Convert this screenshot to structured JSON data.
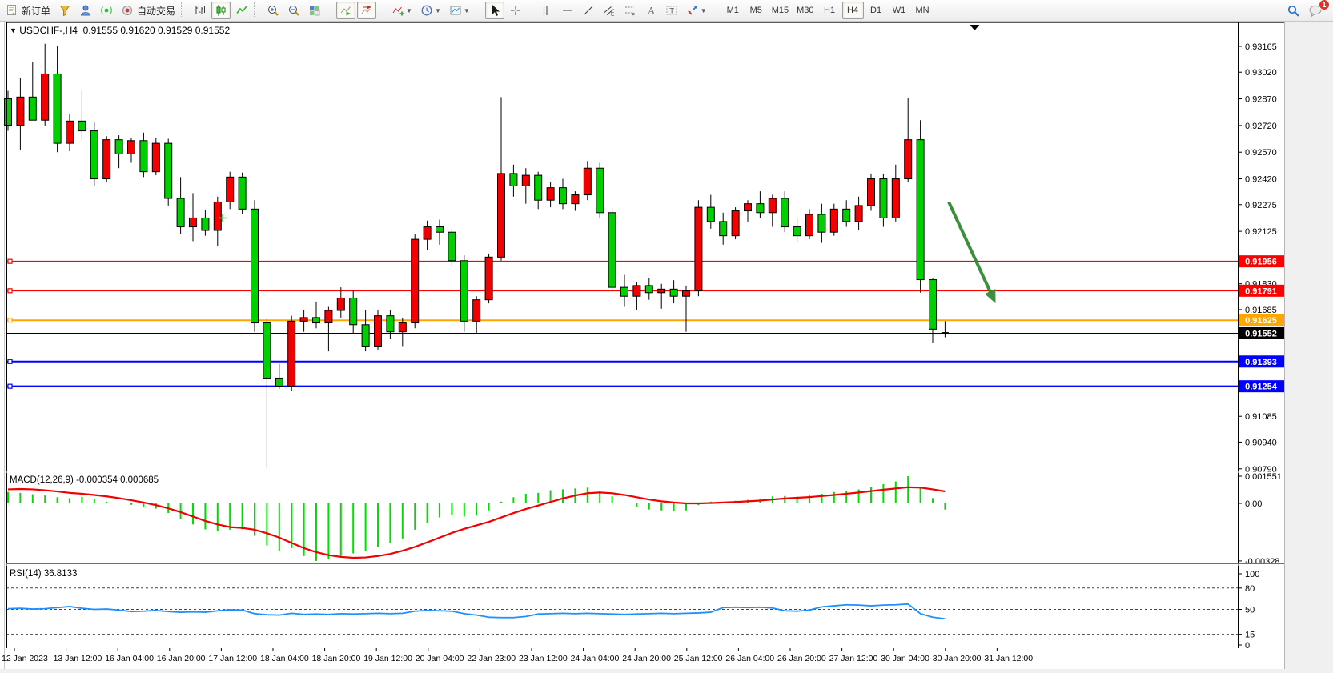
{
  "toolbar": {
    "items": [
      {
        "name": "new-order",
        "icon": "new-order-icon",
        "label": "新订单"
      },
      {
        "name": "metaquotes-funnel",
        "icon": "funnel-icon"
      },
      {
        "name": "community",
        "icon": "person-icon"
      },
      {
        "name": "signals",
        "icon": "signal-icon"
      },
      {
        "name": "auto-trading",
        "icon": "autotrade-icon",
        "label": "自动交易"
      },
      {
        "sep": true
      },
      {
        "name": "bar-chart-mode",
        "icon": "bar-chart-icon"
      },
      {
        "name": "candlestick-mode",
        "icon": "candlestick-icon",
        "active": true
      },
      {
        "name": "line-chart-mode",
        "icon": "line-chart-icon"
      },
      {
        "sep": true
      },
      {
        "name": "zoom-in",
        "icon": "zoom-in-icon"
      },
      {
        "name": "zoom-out",
        "icon": "zoom-out-icon"
      },
      {
        "name": "tile-windows",
        "icon": "tile-windows-icon"
      },
      {
        "sep": true
      },
      {
        "name": "auto-scroll",
        "icon": "auto-scroll-icon",
        "active": true
      },
      {
        "name": "chart-shift",
        "icon": "chart-shift-icon",
        "active": true
      },
      {
        "sep": true
      },
      {
        "name": "indicators",
        "icon": "indicators-icon",
        "caret": true
      },
      {
        "name": "periods",
        "icon": "clock-icon",
        "caret": true
      },
      {
        "name": "templates",
        "icon": "template-icon",
        "caret": true
      },
      {
        "sep": true
      },
      {
        "name": "cursor",
        "icon": "cursor-icon",
        "active": true
      },
      {
        "name": "crosshair",
        "icon": "crosshair-icon"
      },
      {
        "sep": true
      },
      {
        "name": "vertical-line",
        "icon": "vline-icon"
      },
      {
        "name": "horizontal-line",
        "icon": "hline-icon"
      },
      {
        "name": "trendline",
        "icon": "trendline-icon"
      },
      {
        "name": "equidistant-channel",
        "icon": "channel-icon"
      },
      {
        "name": "fibonacci",
        "icon": "fibonacci-icon"
      },
      {
        "name": "text",
        "icon": "text-icon"
      },
      {
        "name": "text-label",
        "icon": "label-icon"
      },
      {
        "name": "arrows",
        "icon": "shapes-icon",
        "caret": true
      },
      {
        "sep": true
      },
      {
        "name": "tf-m1",
        "label": "M1",
        "tf": true
      },
      {
        "name": "tf-m5",
        "label": "M5",
        "tf": true
      },
      {
        "name": "tf-m15",
        "label": "M15",
        "tf": true
      },
      {
        "name": "tf-m30",
        "label": "M30",
        "tf": true
      },
      {
        "name": "tf-h1",
        "label": "H1",
        "tf": true
      },
      {
        "name": "tf-h4",
        "label": "H4",
        "tf": true,
        "active": true
      },
      {
        "name": "tf-d1",
        "label": "D1",
        "tf": true
      },
      {
        "name": "tf-w1",
        "label": "W1",
        "tf": true
      },
      {
        "name": "tf-mn",
        "label": "MN",
        "tf": true
      }
    ],
    "right": [
      {
        "name": "search",
        "icon": "search-icon"
      },
      {
        "name": "notifications",
        "icon": "chat-icon",
        "badge": "1"
      }
    ]
  },
  "title": {
    "dropdown_glyph": "▼",
    "symbol_period": "USDCHF-,H4",
    "ohlc_text": "0.91555 0.91620 0.91529 0.91552"
  },
  "chart_data": {
    "type": "candlestick",
    "symbol": "USDCHF-",
    "timeframe": "H4",
    "current": {
      "open": "0.91555",
      "high": "0.91620",
      "low": "0.91529",
      "close": "0.91552"
    },
    "colors": {
      "bull_body": "#f40000",
      "bear_body": "#00cf00",
      "wick": "#000000",
      "resistance_line": "#ff0000",
      "pivot_line": "#ffa500",
      "support_line": "#0000ff",
      "current_price_line": "#000000",
      "macd_histogram": "#00dd00",
      "macd_signal": "#f00000",
      "rsi_line": "#1e90ff",
      "arrow": "#338a33",
      "plus_marker": "#32e632"
    },
    "y_axis": {
      "ticks": [
        "0.93165",
        "0.93020",
        "0.92870",
        "0.92720",
        "0.92570",
        "0.92420",
        "0.92275",
        "0.92125",
        "0.91830",
        "0.91685",
        "0.91085",
        "0.90940",
        "0.90790"
      ],
      "top_price": 0.93165,
      "bottom_price": 0.9079
    },
    "price_lines": [
      {
        "price": 0.91956,
        "label": "0.91956",
        "role": "resistance",
        "color": "#ff0000"
      },
      {
        "price": 0.91791,
        "label": "0.91791",
        "role": "resistance",
        "color": "#ff0000"
      },
      {
        "price": 0.91625,
        "label": "0.91625",
        "role": "pivot",
        "color": "#ffa500"
      },
      {
        "price": 0.91393,
        "label": "0.91393",
        "role": "support",
        "color": "#0000ff"
      },
      {
        "price": 0.91254,
        "label": "0.91254",
        "role": "support",
        "color": "#0000ff"
      }
    ],
    "current_price_tag": {
      "price": 0.91552,
      "label": "0.91552",
      "color": "#000000"
    },
    "x_labels": [
      "12 Jan 2023",
      "13 Jan 12:00",
      "16 Jan 04:00",
      "16 Jan 20:00",
      "17 Jan 12:00",
      "18 Jan 04:00",
      "18 Jan 20:00",
      "19 Jan 12:00",
      "20 Jan 04:00",
      "22 Jan 23:00",
      "23 Jan 12:00",
      "24 Jan 04:00",
      "24 Jan 20:00",
      "25 Jan 12:00",
      "26 Jan 04:00",
      "26 Jan 20:00",
      "27 Jan 12:00",
      "30 Jan 04:00",
      "30 Jan 20:00",
      "31 Jan 12:00"
    ],
    "candles": [
      [
        0.9287,
        0.92915,
        0.9269,
        0.92722
      ],
      [
        0.92722,
        0.92985,
        0.9258,
        0.9288
      ],
      [
        0.9288,
        0.93075,
        0.9276,
        0.9275
      ],
      [
        0.9275,
        0.9318,
        0.9272,
        0.9301
      ],
      [
        0.9301,
        0.93165,
        0.9257,
        0.9262
      ],
      [
        0.9262,
        0.92785,
        0.92575,
        0.92745
      ],
      [
        0.92745,
        0.9292,
        0.9264,
        0.9269
      ],
      [
        0.9269,
        0.9274,
        0.9238,
        0.9242
      ],
      [
        0.9242,
        0.9266,
        0.924,
        0.9264
      ],
      [
        0.9264,
        0.92665,
        0.9248,
        0.9256
      ],
      [
        0.9256,
        0.9265,
        0.9251,
        0.92635
      ],
      [
        0.92635,
        0.9268,
        0.9243,
        0.9246
      ],
      [
        0.9246,
        0.9265,
        0.9244,
        0.9262
      ],
      [
        0.9262,
        0.92645,
        0.9227,
        0.9231
      ],
      [
        0.9231,
        0.9243,
        0.9211,
        0.9215
      ],
      [
        0.9215,
        0.9234,
        0.9207,
        0.922
      ],
      [
        0.922,
        0.92245,
        0.921,
        0.9213
      ],
      [
        0.9213,
        0.9232,
        0.9204,
        0.9229
      ],
      [
        0.9229,
        0.9246,
        0.9225,
        0.9243
      ],
      [
        0.9243,
        0.92455,
        0.9222,
        0.9225
      ],
      [
        0.9225,
        0.923,
        0.9156,
        0.9161
      ],
      [
        0.9161,
        0.9164,
        0.90795,
        0.913
      ],
      [
        0.913,
        0.9138,
        0.9124,
        0.91255
      ],
      [
        0.91255,
        0.9165,
        0.9123,
        0.9162
      ],
      [
        0.9162,
        0.9168,
        0.9156,
        0.9164
      ],
      [
        0.9164,
        0.9173,
        0.9158,
        0.9161
      ],
      [
        0.9161,
        0.917,
        0.9145,
        0.9168
      ],
      [
        0.9168,
        0.9181,
        0.9164,
        0.9175
      ],
      [
        0.9175,
        0.91795,
        0.9155,
        0.916
      ],
      [
        0.916,
        0.9168,
        0.9145,
        0.9148
      ],
      [
        0.9148,
        0.9168,
        0.9146,
        0.9165
      ],
      [
        0.9165,
        0.9168,
        0.9152,
        0.9156
      ],
      [
        0.9156,
        0.9164,
        0.9148,
        0.9161
      ],
      [
        0.9161,
        0.9211,
        0.9158,
        0.9208
      ],
      [
        0.9208,
        0.92185,
        0.9202,
        0.9215
      ],
      [
        0.9215,
        0.9219,
        0.9205,
        0.9212
      ],
      [
        0.9212,
        0.9214,
        0.9193,
        0.9196
      ],
      [
        0.9196,
        0.9199,
        0.9156,
        0.9162
      ],
      [
        0.9162,
        0.9176,
        0.9155,
        0.9174
      ],
      [
        0.9174,
        0.92,
        0.9172,
        0.9198
      ],
      [
        0.9198,
        0.9288,
        0.9196,
        0.9245
      ],
      [
        0.9245,
        0.925,
        0.9232,
        0.9238
      ],
      [
        0.9238,
        0.9248,
        0.9228,
        0.9244
      ],
      [
        0.9244,
        0.9246,
        0.9225,
        0.923
      ],
      [
        0.923,
        0.924,
        0.9226,
        0.9237
      ],
      [
        0.9237,
        0.9242,
        0.9225,
        0.9228
      ],
      [
        0.9228,
        0.9235,
        0.9224,
        0.9233
      ],
      [
        0.9233,
        0.9252,
        0.923,
        0.9248
      ],
      [
        0.9248,
        0.9251,
        0.922,
        0.9223
      ],
      [
        0.9223,
        0.9225,
        0.9179,
        0.9181
      ],
      [
        0.9181,
        0.9188,
        0.917,
        0.9176
      ],
      [
        0.9176,
        0.9184,
        0.9168,
        0.9182
      ],
      [
        0.9182,
        0.9186,
        0.9174,
        0.9178
      ],
      [
        0.9178,
        0.9183,
        0.9169,
        0.918
      ],
      [
        0.918,
        0.9185,
        0.9172,
        0.9176
      ],
      [
        0.9176,
        0.9182,
        0.9156,
        0.9179
      ],
      [
        0.9179,
        0.923,
        0.9176,
        0.9226
      ],
      [
        0.9226,
        0.9233,
        0.9214,
        0.9218
      ],
      [
        0.9218,
        0.9223,
        0.9205,
        0.921
      ],
      [
        0.921,
        0.9226,
        0.9208,
        0.9224
      ],
      [
        0.9224,
        0.923,
        0.9218,
        0.9228
      ],
      [
        0.9228,
        0.9235,
        0.922,
        0.9223
      ],
      [
        0.9223,
        0.9233,
        0.9215,
        0.9231
      ],
      [
        0.9231,
        0.9235,
        0.9212,
        0.9215
      ],
      [
        0.9215,
        0.922,
        0.9206,
        0.921
      ],
      [
        0.921,
        0.9225,
        0.9208,
        0.9222
      ],
      [
        0.9222,
        0.9228,
        0.9206,
        0.9212
      ],
      [
        0.9212,
        0.9228,
        0.921,
        0.9225
      ],
      [
        0.9225,
        0.923,
        0.9215,
        0.9218
      ],
      [
        0.9218,
        0.9232,
        0.9213,
        0.9227
      ],
      [
        0.9227,
        0.9245,
        0.9224,
        0.9242
      ],
      [
        0.9242,
        0.9245,
        0.9215,
        0.922
      ],
      [
        0.922,
        0.925,
        0.9218,
        0.9242
      ],
      [
        0.9242,
        0.92876,
        0.924,
        0.9264
      ],
      [
        0.9264,
        0.9275,
        0.9178,
        0.91853
      ],
      [
        0.91853,
        0.9186,
        0.915,
        0.91575
      ],
      [
        0.91555,
        0.9162,
        0.91529,
        0.91552
      ]
    ],
    "macd": {
      "label_text": "MACD(12,26,9) -0.000354 0.000685",
      "value": -0.000354,
      "signal_value": 0.000685,
      "axis_values": [
        0.001551,
        0,
        -0.00328
      ],
      "axis_labels": [
        "0.001551",
        "0.00",
        "-0.00328"
      ],
      "histogram": [
        0.00065,
        0.0006,
        0.00052,
        0.00045,
        0.00035,
        0.0003,
        0.00038,
        0.00025,
        0.0001,
        2e-05,
        -8e-05,
        -0.0002,
        -0.0003,
        -0.00055,
        -0.0009,
        -0.0012,
        -0.00148,
        -0.0016,
        -0.0015,
        -0.00148,
        -0.00185,
        -0.0024,
        -0.0027,
        -0.00255,
        -0.003,
        -0.00328,
        -0.0032,
        -0.003,
        -0.00285,
        -0.0027,
        -0.0025,
        -0.00225,
        -0.002,
        -0.0015,
        -0.0011,
        -0.0008,
        -0.00065,
        -0.00075,
        -0.0007,
        -0.0004,
        0.0001,
        0.00035,
        0.00055,
        0.0006,
        0.00075,
        0.0008,
        0.00085,
        0.0009,
        0.0007,
        0.0004,
        5e-05,
        -0.0002,
        -0.00035,
        -0.0004,
        -0.00042,
        -0.0004,
        -0.0001,
        0.0001,
        8e-05,
        0.00015,
        0.0002,
        0.00028,
        0.0004,
        0.00042,
        0.00038,
        0.00045,
        0.00055,
        0.00065,
        0.0007,
        0.0008,
        0.00095,
        0.0011,
        0.00125,
        0.00155,
        0.0009,
        0.0003,
        -0.000354
      ],
      "signal": [
        0.0008,
        0.00082,
        0.0008,
        0.00075,
        0.00068,
        0.0006,
        0.00055,
        0.00048,
        0.0004,
        0.0003,
        0.00018,
        5e-05,
        -0.0001,
        -0.00028,
        -0.0005,
        -0.00075,
        -0.001,
        -0.0012,
        -0.00135,
        -0.0014,
        -0.0015,
        -0.0017,
        -0.00195,
        -0.00225,
        -0.00255,
        -0.00278,
        -0.00295,
        -0.00305,
        -0.0031,
        -0.00308,
        -0.003,
        -0.00288,
        -0.0027,
        -0.00248,
        -0.00222,
        -0.00195,
        -0.00168,
        -0.00145,
        -0.00125,
        -0.00105,
        -0.0008,
        -0.00055,
        -0.00032,
        -0.00012,
        8e-05,
        0.00028,
        0.00045,
        0.00058,
        0.00062,
        0.00058,
        0.00048,
        0.00035,
        0.00022,
        0.00012,
        5e-05,
        0,
        0,
        2e-05,
        5e-05,
        8e-05,
        0.00012,
        0.00016,
        0.00022,
        0.00028,
        0.00032,
        0.00036,
        0.00042,
        0.00048,
        0.00055,
        0.00062,
        0.0007,
        0.00078,
        0.00085,
        0.00092,
        0.0009,
        0.0008,
        0.000685
      ]
    },
    "rsi": {
      "label_text": "RSI(14) 36.8133",
      "value": 36.8133,
      "axis_labels": [
        "100",
        "80",
        "50",
        "15",
        "0"
      ],
      "axis_values": [
        100,
        80,
        50,
        15,
        0
      ],
      "dashed_levels": [
        80,
        50,
        15
      ],
      "series": [
        51,
        51.5,
        50.5,
        51,
        52.5,
        54,
        51.5,
        50,
        50.5,
        49,
        47,
        47.5,
        48.5,
        47,
        46,
        46.5,
        46,
        48,
        49.5,
        49,
        44,
        42.5,
        42,
        44.5,
        43,
        43.5,
        43,
        44,
        43.5,
        44,
        44.5,
        44,
        44.5,
        47.5,
        48.5,
        48,
        47.5,
        44,
        42,
        39,
        38.5,
        38.5,
        40,
        43.5,
        44,
        44.5,
        44,
        44.5,
        44,
        43.5,
        43,
        43.5,
        44,
        44.5,
        44,
        44.5,
        45,
        46,
        52.5,
        53,
        52.5,
        53,
        52,
        48,
        47.5,
        49,
        53.5,
        55,
        56.5,
        56,
        55,
        56,
        56.5,
        57.5,
        44,
        39,
        36.81
      ]
    },
    "annotations": {
      "trend_arrow": {
        "bar_from": 76.3,
        "price_from": 0.9229,
        "bar_to": 80.1,
        "price_to": 0.9172,
        "color": "#338a33"
      },
      "plus_marker": {
        "bar": 17.4,
        "price": 0.922,
        "color": "#32e632"
      },
      "shift_marker_bar": 78.4
    }
  }
}
